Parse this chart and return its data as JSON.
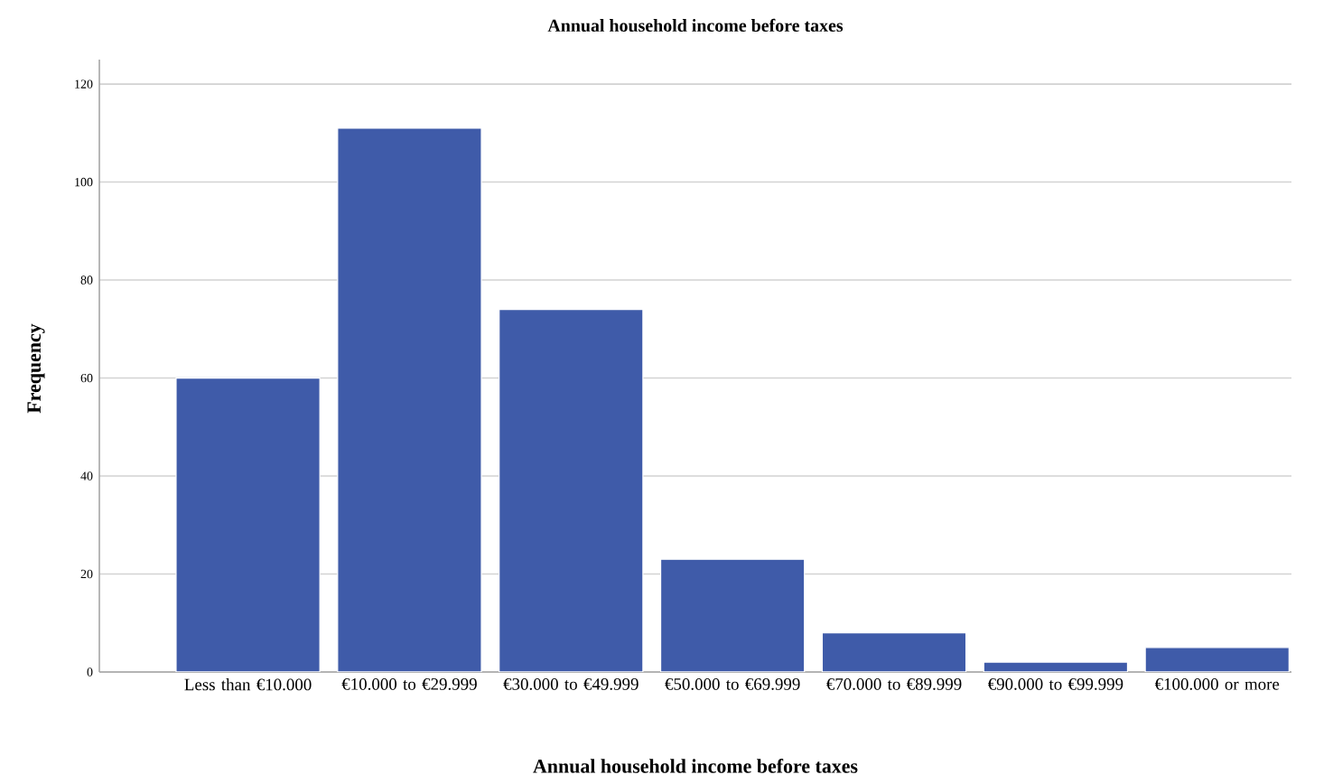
{
  "chart_data": {
    "type": "bar",
    "title": "Annual household income before taxes",
    "xlabel": "Annual household income before taxes",
    "ylabel": "Frequency",
    "categories": [
      "Less than €10.000",
      "€10.000 to €29.999",
      "€30.000 to €49.999",
      "€50.000 to €69.999",
      "€70.000 to €89.999",
      "€90.000 to €99.999",
      "€100.000 or more"
    ],
    "values": [
      60,
      111,
      74,
      23,
      8,
      2,
      5
    ],
    "color": "#3f5ba9",
    "ylim": [
      0,
      125
    ],
    "yticks": [
      0,
      20,
      40,
      60,
      80,
      100,
      120
    ],
    "grid": "y"
  }
}
